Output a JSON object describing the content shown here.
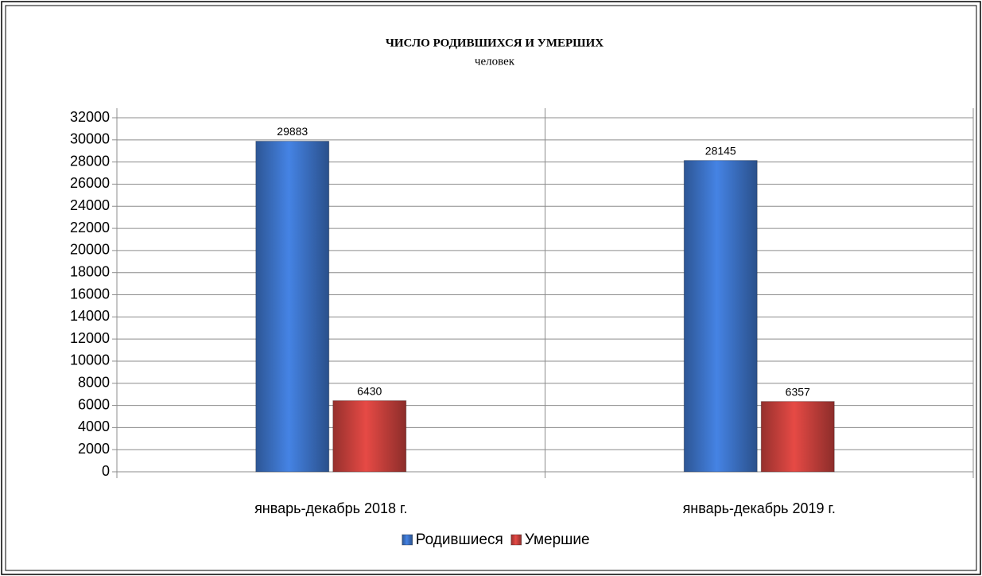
{
  "chart_data": {
    "type": "bar",
    "title": "ЧИСЛО РОДИВШИХСЯ И УМЕРШИХ",
    "subtitle": "человек",
    "categories": [
      "январь-декабрь 2018 г.",
      "январь-декабрь 2019 г."
    ],
    "series": [
      {
        "name": "Родившиеся",
        "color": "#3c72c6",
        "values": [
          29883,
          28145
        ]
      },
      {
        "name": "Умершие",
        "color": "#c8403c",
        "values": [
          6430,
          6357
        ]
      }
    ],
    "ylim": [
      0,
      32000
    ],
    "yticks": [
      0,
      2000,
      4000,
      6000,
      8000,
      10000,
      12000,
      14000,
      16000,
      18000,
      20000,
      22000,
      24000,
      26000,
      28000,
      30000,
      32000
    ],
    "grid": true,
    "legend": "bottom"
  }
}
